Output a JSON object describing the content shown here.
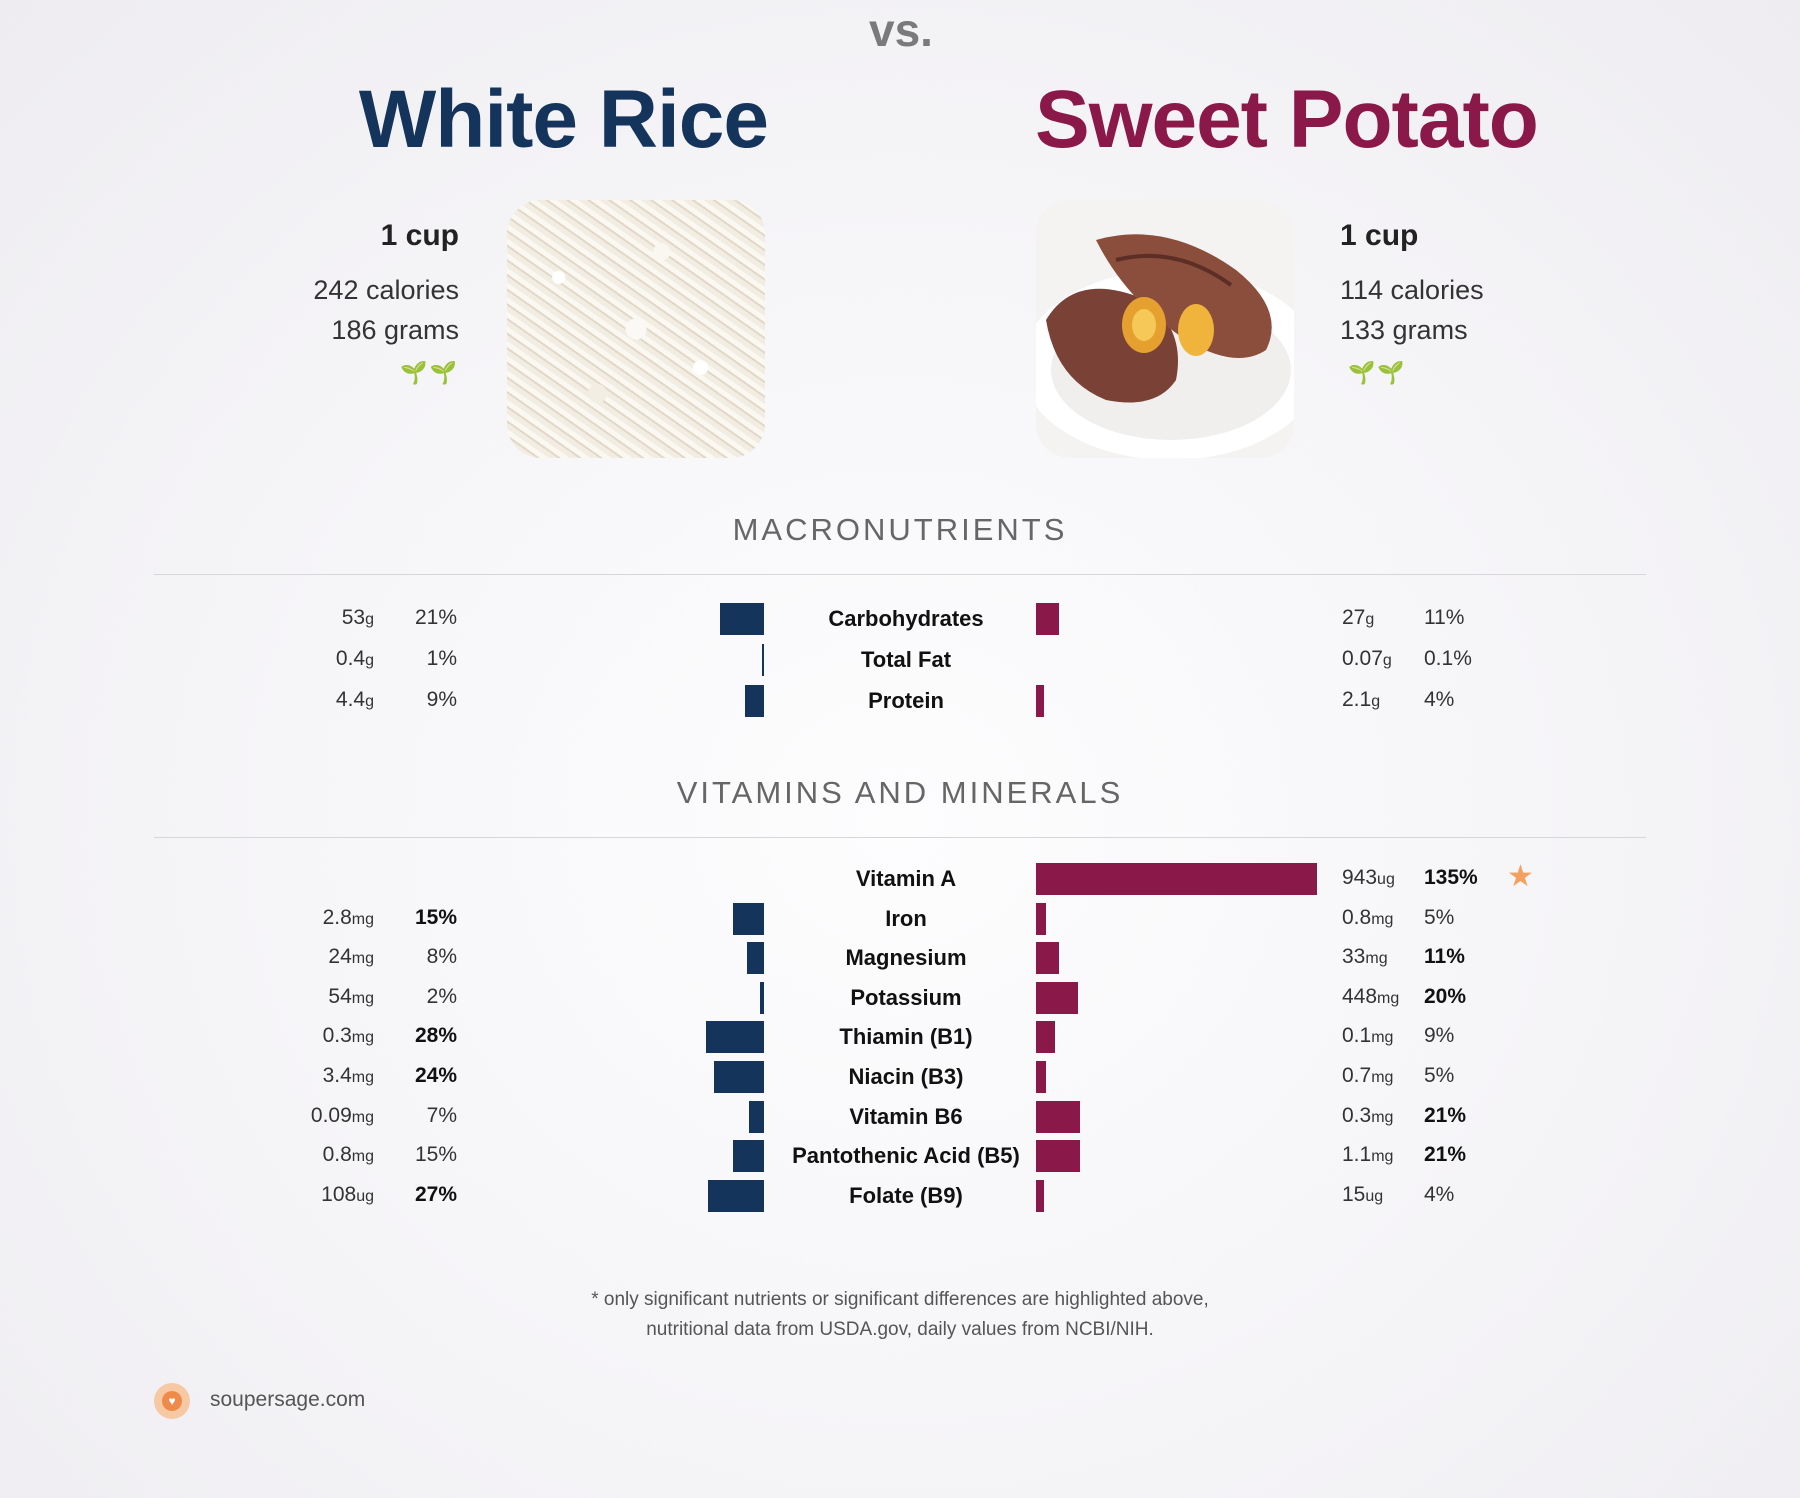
{
  "header": {
    "left_title": "White Rice",
    "vs": "vs.",
    "right_title": "Sweet Potato"
  },
  "left_food": {
    "serving": "1 cup",
    "calories": "242 calories",
    "grams": "186 grams",
    "icon": "sprout-icon",
    "color": "#14345c"
  },
  "right_food": {
    "serving": "1 cup",
    "calories": "114 calories",
    "grams": "133 grams",
    "icon": "sprout-icon",
    "color": "#8a1848"
  },
  "sections": {
    "macro_title": "MACRONUTRIENTS",
    "vitamins_title": "VITAMINS AND MINERALS"
  },
  "chart_data": [
    {
      "type": "bar",
      "title": "MACRONUTRIENTS",
      "categories": [
        "Carbohydrates",
        "Total Fat",
        "Protein"
      ],
      "series": [
        {
          "name": "White Rice",
          "values": [
            21,
            1,
            9
          ],
          "amounts": [
            [
              "53",
              "g"
            ],
            [
              "0.4",
              "g"
            ],
            [
              "4.4",
              "g"
            ]
          ],
          "labels": [
            "21%",
            "1%",
            "9%"
          ],
          "bold": [
            false,
            false,
            false
          ]
        },
        {
          "name": "Sweet Potato",
          "values": [
            11,
            0.1,
            4
          ],
          "amounts": [
            [
              "27",
              "g"
            ],
            [
              "0.07",
              "g"
            ],
            [
              "2.1",
              "g"
            ]
          ],
          "labels": [
            "11%",
            "0.1%",
            "4%"
          ],
          "bold": [
            false,
            false,
            false
          ]
        }
      ]
    },
    {
      "type": "bar",
      "title": "VITAMINS AND MINERALS",
      "categories": [
        "Vitamin A",
        "Iron",
        "Magnesium",
        "Potassium",
        "Thiamin (B1)",
        "Niacin (B3)",
        "Vitamin B6",
        "Pantothenic Acid (B5)",
        "Folate (B9)"
      ],
      "series": [
        {
          "name": "White Rice",
          "values": [
            0,
            15,
            8,
            2,
            28,
            24,
            7,
            15,
            27
          ],
          "amounts": [
            [
              "",
              ""
            ],
            [
              "2.8",
              "mg"
            ],
            [
              "24",
              "mg"
            ],
            [
              "54",
              "mg"
            ],
            [
              "0.3",
              "mg"
            ],
            [
              "3.4",
              "mg"
            ],
            [
              "0.09",
              "mg"
            ],
            [
              "0.8",
              "mg"
            ],
            [
              "108",
              "ug"
            ]
          ],
          "labels": [
            "",
            "15%",
            "8%",
            "2%",
            "28%",
            "24%",
            "7%",
            "15%",
            "27%"
          ],
          "bold": [
            false,
            true,
            false,
            false,
            true,
            true,
            false,
            false,
            true
          ]
        },
        {
          "name": "Sweet Potato",
          "values": [
            135,
            5,
            11,
            20,
            9,
            5,
            21,
            21,
            4
          ],
          "amounts": [
            [
              "943",
              "ug"
            ],
            [
              "0.8",
              "mg"
            ],
            [
              "33",
              "mg"
            ],
            [
              "448",
              "mg"
            ],
            [
              "0.1",
              "mg"
            ],
            [
              "0.7",
              "mg"
            ],
            [
              "0.3",
              "mg"
            ],
            [
              "1.1",
              "mg"
            ],
            [
              "15",
              "ug"
            ]
          ],
          "labels": [
            "135%",
            "5%",
            "11%",
            "20%",
            "9%",
            "5%",
            "21%",
            "21%",
            "4%"
          ],
          "bold": [
            true,
            false,
            true,
            true,
            false,
            false,
            true,
            true,
            false
          ]
        }
      ],
      "highlight": {
        "category": "Vitamin A",
        "icon": "star-icon",
        "color": "#f3a060"
      }
    }
  ],
  "footer": {
    "note_line1": "* only significant nutrients or significant differences are highlighted above,",
    "note_line2": "nutritional data from USDA.gov, daily values from NCBI/NIH.",
    "site": "soupersage.com",
    "logo_icon": "soupersage-logo-icon"
  }
}
